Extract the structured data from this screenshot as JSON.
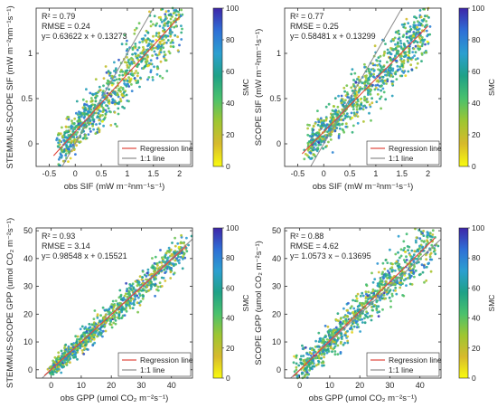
{
  "colorbar": {
    "label": "SMC",
    "ticks": [
      "0",
      "20",
      "40",
      "60",
      "80",
      "100"
    ],
    "min": 0,
    "max": 100,
    "colormap": [
      "#F9FB0E",
      "#D7BA2D",
      "#9EC632",
      "#4AC16D",
      "#1FA187",
      "#2C9FD0",
      "#2E6FD6",
      "#3E26A8"
    ]
  },
  "chart_data": [
    {
      "type": "scatter",
      "panel": "top-left",
      "xlabel": "obs SIF (mW m⁻²nm⁻¹s⁻¹)",
      "ylabel": "STEMMUS-SCOPE SIF (mW m⁻²nm⁻¹s⁻¹)",
      "xlim": [
        -0.75,
        2.25
      ],
      "ylim": [
        -0.25,
        1.5
      ],
      "xticks": [
        -0.5,
        0,
        0.5,
        1,
        1.5,
        2
      ],
      "xtick_labels": [
        "-0.5",
        "0",
        "0.5",
        "1",
        "1.5",
        "2"
      ],
      "yticks": [
        0,
        0.5,
        1
      ],
      "ytick_labels": [
        "0",
        "0.5",
        "1"
      ],
      "stats": [
        "R² = 0.79",
        "RMSE = 0.24",
        "y=      0.63622 x + 0.13273"
      ],
      "slope": 0.63622,
      "intercept": 0.13273,
      "legend": [
        "Regression line",
        "1:1 line"
      ],
      "legend_position": "bottom-right",
      "cloud": {
        "xmin": -0.3,
        "xmax": 2.0,
        "noise": 0.18
      }
    },
    {
      "type": "scatter",
      "panel": "top-right",
      "xlabel": "obs SIF (mW m⁻²nm⁻¹s⁻¹)",
      "ylabel": "SCOPE SIF (mW m⁻²nm⁻¹s⁻¹)",
      "xlim": [
        -0.75,
        2.25
      ],
      "ylim": [
        -0.25,
        1.5
      ],
      "xticks": [
        -0.5,
        0,
        0.5,
        1,
        1.5,
        2
      ],
      "xtick_labels": [
        "-0.5",
        "0",
        "0.5",
        "1",
        "1.5",
        "2"
      ],
      "yticks": [
        0,
        0.5,
        1
      ],
      "ytick_labels": [
        "0",
        "0.5",
        "1"
      ],
      "stats": [
        "R² = 0.77",
        "RMSE = 0.25",
        "y=      0.58481 x + 0.13299"
      ],
      "slope": 0.58481,
      "intercept": 0.13299,
      "legend": [
        "Regression line",
        "1:1 line"
      ],
      "legend_position": "bottom-right",
      "cloud": {
        "xmin": -0.3,
        "xmax": 2.0,
        "noise": 0.17
      }
    },
    {
      "type": "scatter",
      "panel": "bottom-left",
      "xlabel": "obs GPP (umol CO₂ m⁻²s⁻¹)",
      "ylabel": "STEMMUS-SCOPE GPP (umol CO₂ m⁻²s⁻¹)",
      "xlim": [
        -5,
        47
      ],
      "ylim": [
        -3,
        51
      ],
      "xticks": [
        0,
        10,
        20,
        30,
        40
      ],
      "xtick_labels": [
        "0",
        "10",
        "20",
        "30",
        "40"
      ],
      "yticks": [
        0,
        10,
        20,
        30,
        40,
        50
      ],
      "ytick_labels": [
        "0",
        "10",
        "20",
        "30",
        "40",
        "50"
      ],
      "stats": [
        "R² = 0.93",
        "RMSE = 3.14",
        "y=     0.98548 x + 0.15521"
      ],
      "slope": 0.98548,
      "intercept": 0.15521,
      "legend": [
        "Regression line",
        "1:1 line"
      ],
      "legend_position": "bottom-right",
      "cloud": {
        "xmin": 0,
        "xmax": 45,
        "noise": 2.8
      }
    },
    {
      "type": "scatter",
      "panel": "bottom-right",
      "xlabel": "obs GPP (umol CO₂ m⁻²s⁻¹)",
      "ylabel": "SCOPE GPP (umol CO₂ m⁻²s⁻¹)",
      "xlim": [
        -5,
        47
      ],
      "ylim": [
        -3,
        51
      ],
      "xticks": [
        0,
        10,
        20,
        30,
        40
      ],
      "xtick_labels": [
        "0",
        "10",
        "20",
        "30",
        "40"
      ],
      "yticks": [
        0,
        10,
        20,
        30,
        40,
        50
      ],
      "ytick_labels": [
        "0",
        "10",
        "20",
        "30",
        "40",
        "50"
      ],
      "stats": [
        "R² = 0.88",
        "RMSE = 4.62",
        "y=   1.0573 x − 0.13695"
      ],
      "slope": 1.0573,
      "intercept": -0.13695,
      "legend": [
        "Regression line",
        "1:1 line"
      ],
      "legend_position": "bottom-right",
      "cloud": {
        "xmin": 0,
        "xmax": 45,
        "noise": 4.3
      }
    }
  ]
}
